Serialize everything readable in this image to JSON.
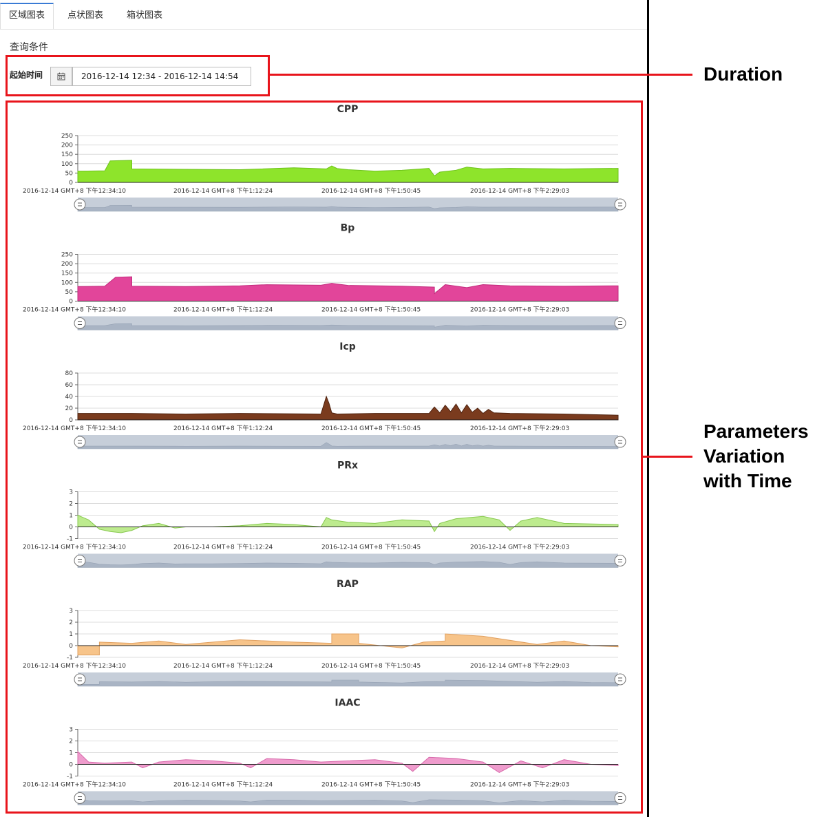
{
  "tabs": [
    {
      "label": "区域图表",
      "active": true
    },
    {
      "label": "点状图表",
      "active": false
    },
    {
      "label": "箱状图表",
      "active": false
    }
  ],
  "query": {
    "title": "查询条件",
    "start_label": "起始时间",
    "date_range": "2016-12-14 12:34 - 2016-12-14 14:54",
    "calendar_icon": "calendar-icon"
  },
  "annotations": {
    "duration": "Duration",
    "parameters": [
      "Parameters",
      "Variation",
      "with Time"
    ]
  },
  "colors": {
    "accent_red": "#e8141b",
    "cpp": "#8ee42b",
    "bp": "#e2459a",
    "icp": "#7a3b1e",
    "prx": "#bdeb8e",
    "rap": "#f7c48a",
    "iaac": "#ef9ccd"
  },
  "x_ticks": [
    "2016-12-14  GMT+8 下午12:34:10",
    "2016-12-14  GMT+8 下午1:12:24",
    "2016-12-14  GMT+8 下午1:50:45",
    "2016-12-14  GMT+8 下午2:29:03"
  ],
  "chart_data": [
    {
      "type": "area",
      "title": "CPP",
      "color": "#8ee42b",
      "edge": "#6cc21a",
      "ylim": [
        0,
        250
      ],
      "yticks": [
        0,
        50,
        100,
        150,
        200,
        250
      ],
      "grid": true,
      "x": [
        0,
        0.05,
        0.06,
        0.1,
        0.1,
        0.2,
        0.3,
        0.4,
        0.46,
        0.47,
        0.48,
        0.5,
        0.55,
        0.6,
        0.65,
        0.66,
        0.67,
        0.7,
        0.72,
        0.75,
        0.8,
        0.9,
        1.0
      ],
      "values": [
        60,
        62,
        115,
        118,
        72,
        70,
        68,
        78,
        72,
        88,
        74,
        68,
        60,
        65,
        75,
        35,
        55,
        65,
        82,
        72,
        75,
        72,
        75
      ]
    },
    {
      "type": "area",
      "title": "Bp",
      "color": "#e2459a",
      "edge": "#c22a7c",
      "ylim": [
        0,
        250
      ],
      "yticks": [
        0,
        50,
        100,
        150,
        200,
        250
      ],
      "grid": true,
      "x": [
        0,
        0.05,
        0.07,
        0.1,
        0.1,
        0.2,
        0.3,
        0.35,
        0.45,
        0.47,
        0.5,
        0.6,
        0.66,
        0.66,
        0.68,
        0.72,
        0.75,
        0.8,
        0.9,
        1.0
      ],
      "values": [
        78,
        80,
        128,
        130,
        80,
        78,
        82,
        88,
        85,
        95,
        84,
        80,
        75,
        40,
        88,
        72,
        88,
        82,
        80,
        82
      ]
    },
    {
      "type": "area",
      "title": "Icp",
      "color": "#7a3b1e",
      "edge": "#4e220f",
      "ylim": [
        0,
        80
      ],
      "yticks": [
        0,
        20,
        40,
        60,
        80
      ],
      "grid": true,
      "x": [
        0,
        0.1,
        0.2,
        0.3,
        0.45,
        0.46,
        0.465,
        0.47,
        0.48,
        0.55,
        0.65,
        0.66,
        0.67,
        0.68,
        0.69,
        0.7,
        0.71,
        0.72,
        0.73,
        0.74,
        0.75,
        0.76,
        0.77,
        0.8,
        0.9,
        1.0
      ],
      "values": [
        11,
        11,
        10,
        11,
        10,
        40,
        28,
        12,
        10,
        11,
        11,
        22,
        12,
        25,
        14,
        27,
        12,
        26,
        13,
        20,
        11,
        18,
        12,
        11,
        10,
        8
      ]
    },
    {
      "type": "area",
      "title": "PRx",
      "color": "#bdeb8e",
      "edge": "#86c84d",
      "ylim": [
        -1,
        3
      ],
      "yticks": [
        -1,
        0,
        1,
        2,
        3
      ],
      "grid": true,
      "x": [
        0,
        0.02,
        0.04,
        0.06,
        0.08,
        0.1,
        0.12,
        0.15,
        0.18,
        0.2,
        0.25,
        0.3,
        0.35,
        0.4,
        0.45,
        0.46,
        0.47,
        0.5,
        0.55,
        0.6,
        0.65,
        0.66,
        0.67,
        0.7,
        0.75,
        0.78,
        0.8,
        0.82,
        0.85,
        0.9,
        1.0
      ],
      "values": [
        1.0,
        0.6,
        -0.2,
        -0.4,
        -0.5,
        -0.3,
        0.1,
        0.3,
        -0.1,
        0.0,
        0.0,
        0.1,
        0.3,
        0.2,
        0.0,
        0.8,
        0.6,
        0.4,
        0.3,
        0.6,
        0.5,
        -0.4,
        0.3,
        0.7,
        0.9,
        0.6,
        -0.3,
        0.5,
        0.8,
        0.3,
        0.2
      ]
    },
    {
      "type": "area",
      "title": "RAP",
      "color": "#f7c48a",
      "edge": "#e0a060",
      "ylim": [
        -1,
        3
      ],
      "yticks": [
        -1,
        0,
        1,
        2,
        3
      ],
      "grid": true,
      "x": [
        0,
        0.04,
        0.04,
        0.1,
        0.15,
        0.2,
        0.25,
        0.3,
        0.4,
        0.47,
        0.47,
        0.52,
        0.52,
        0.6,
        0.64,
        0.68,
        0.68,
        0.75,
        0.85,
        0.9,
        0.95,
        1.0
      ],
      "values": [
        -0.8,
        -0.8,
        0.3,
        0.2,
        0.4,
        0.1,
        0.3,
        0.5,
        0.3,
        0.2,
        1.0,
        1.0,
        0.2,
        -0.2,
        0.3,
        0.4,
        1.0,
        0.8,
        0.1,
        0.4,
        0.0,
        -0.1
      ]
    },
    {
      "type": "area",
      "title": "IAAC",
      "color": "#ef9ccd",
      "edge": "#d86aab",
      "ylim": [
        -1,
        3
      ],
      "yticks": [
        -1,
        0,
        1,
        2,
        3
      ],
      "grid": true,
      "x": [
        0,
        0.02,
        0.05,
        0.1,
        0.12,
        0.15,
        0.2,
        0.25,
        0.3,
        0.32,
        0.35,
        0.4,
        0.45,
        0.5,
        0.55,
        0.6,
        0.62,
        0.65,
        0.7,
        0.75,
        0.78,
        0.82,
        0.86,
        0.9,
        0.95,
        1.0
      ],
      "values": [
        1.1,
        0.2,
        0.1,
        0.2,
        -0.3,
        0.2,
        0.4,
        0.3,
        0.1,
        -0.3,
        0.5,
        0.4,
        0.2,
        0.3,
        0.4,
        0.1,
        -0.6,
        0.6,
        0.5,
        0.2,
        -0.7,
        0.3,
        -0.3,
        0.4,
        0.0,
        -0.1
      ]
    }
  ]
}
